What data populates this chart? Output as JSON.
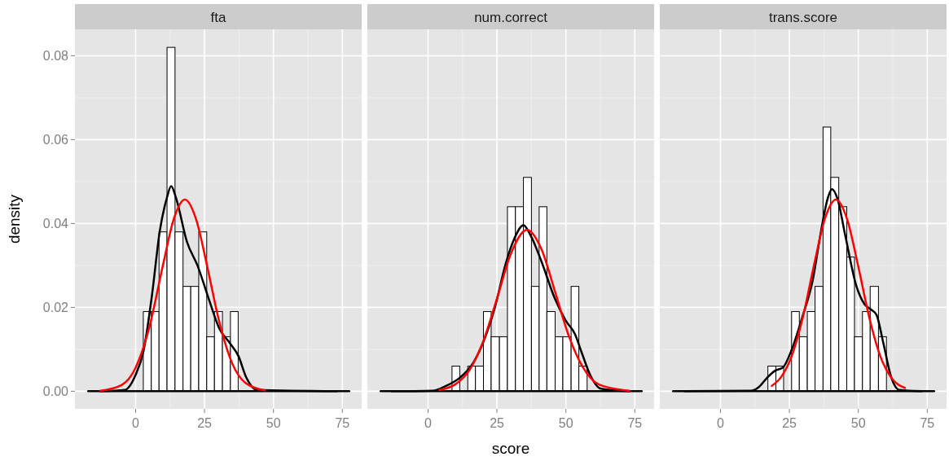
{
  "chart_data": [
    {
      "type": "histogram",
      "title": "fta",
      "ylabel": "density",
      "xlim": [
        -22,
        82
      ],
      "ylim": [
        -0.0042,
        0.0863
      ],
      "xticks": [
        0,
        25,
        50,
        75
      ],
      "yticks": [
        {
          "value": 0,
          "label": "0.00"
        },
        {
          "value": 0.02,
          "label": "0.02"
        },
        {
          "value": 0.04,
          "label": "0.04"
        },
        {
          "value": 0.06,
          "label": "0.06"
        },
        {
          "value": 0.08,
          "label": "0.08"
        }
      ],
      "grid": true,
      "series": [
        {
          "color": "#ffffff",
          "bins": [
            2.8,
            5.7,
            8.5,
            11.4,
            14.3,
            17.2,
            20.0,
            22.9,
            25.8,
            28.6,
            31.5,
            34.4,
            37.2
          ],
          "values": [
            0.019,
            0.019,
            0.038,
            0.082,
            0.038,
            0.025,
            0.025,
            0.038,
            0.013,
            0.019,
            0.013,
            0.019
          ]
        },
        {
          "type": "line",
          "color": "#000000",
          "x": [
            -17.2,
            77.5
          ],
          "values": [
            0,
            0
          ]
        },
        {
          "type": "line",
          "color": "#000000",
          "x": [
            -12.7,
            -3.9,
            0,
            2.9,
            5.9,
            8.8,
            11.3,
            12.9,
            14.7,
            18.6,
            22.5,
            26.5,
            30.4,
            34.3,
            37.3,
            40.2,
            44.1,
            73
          ],
          "values": [
            0,
            0.0003,
            0.0039,
            0.0097,
            0.0227,
            0.0383,
            0.046,
            0.0489,
            0.046,
            0.0357,
            0.0299,
            0.0221,
            0.0149,
            0.0114,
            0.0084,
            0.0032,
            0.0003,
            0
          ]
        },
        {
          "type": "line",
          "color": "#ff0000",
          "x": [
            -12.7,
            -5,
            0,
            5,
            10,
            14,
            17.9,
            22,
            26,
            30,
            35,
            40,
            46.9
          ],
          "values": [
            0.0001,
            0.0015,
            0.0056,
            0.0153,
            0.0303,
            0.0414,
            0.0457,
            0.0409,
            0.0297,
            0.0175,
            0.0067,
            0.0019,
            0.0002
          ]
        }
      ]
    },
    {
      "type": "histogram",
      "title": "num.correct",
      "xlabel": "score",
      "xlim": [
        -22,
        82
      ],
      "ylim": [
        -0.0042,
        0.0863
      ],
      "xticks": [
        0,
        25,
        50,
        75
      ],
      "yticks": [
        {
          "value": 0,
          "label": null
        },
        {
          "value": 0.02,
          "label": null
        },
        {
          "value": 0.04,
          "label": null
        },
        {
          "value": 0.06,
          "label": null
        },
        {
          "value": 0.08,
          "label": null
        }
      ],
      "grid": true,
      "tick_labels": "x",
      "series": [
        {
          "color": "#ffffff",
          "bins": [
            8.7,
            11.5,
            14.4,
            17.2,
            20.1,
            22.9,
            25.9,
            28.8,
            31.7,
            34.6,
            37.5,
            40.3,
            43.1,
            46.1,
            48.9,
            51.9,
            54.7,
            57.7
          ],
          "values": [
            0.006,
            0,
            0.006,
            0.006,
            0.019,
            0.013,
            0.013,
            0.044,
            0.044,
            0.051,
            0.025,
            0.044,
            0.019,
            0.013,
            0.013,
            0.025,
            0.006
          ]
        },
        {
          "type": "line",
          "color": "#000000",
          "x": [
            -17.2,
            77.5
          ],
          "values": [
            0,
            0
          ]
        },
        {
          "type": "line",
          "color": "#000000",
          "x": [
            -13.1,
            1.7,
            6.6,
            11.5,
            16.4,
            20.4,
            24.3,
            28.2,
            31.7,
            34.6,
            37.1,
            41,
            46,
            49.9,
            53.3,
            55.8,
            58.8,
            62.7,
            73
          ],
          "values": [
            0,
            0.0001,
            0.0013,
            0.0032,
            0.0068,
            0.0123,
            0.0201,
            0.0305,
            0.037,
            0.0396,
            0.0373,
            0.0312,
            0.0221,
            0.0169,
            0.0136,
            0.0091,
            0.0039,
            0.0006,
            0
          ]
        },
        {
          "type": "line",
          "color": "#ff0000",
          "x": [
            4.1,
            10,
            15,
            20,
            25,
            30,
            35.9,
            41,
            46,
            51,
            56,
            62,
            73
          ],
          "values": [
            0.0003,
            0.0017,
            0.005,
            0.0119,
            0.0221,
            0.0327,
            0.0385,
            0.0341,
            0.0239,
            0.0133,
            0.0059,
            0.0016,
            0.0001
          ]
        }
      ]
    },
    {
      "type": "histogram",
      "title": "trans.score",
      "xlim": [
        -22,
        82
      ],
      "ylim": [
        -0.0042,
        0.0863
      ],
      "xticks": [
        0,
        25,
        50,
        75
      ],
      "yticks": [
        {
          "value": 0,
          "label": null
        },
        {
          "value": 0.02,
          "label": null
        },
        {
          "value": 0.04,
          "label": null
        },
        {
          "value": 0.06,
          "label": null
        },
        {
          "value": 0.08,
          "label": null
        }
      ],
      "grid": true,
      "tick_labels": "x",
      "series": [
        {
          "color": "#ffffff",
          "bins": [
            17.2,
            20.1,
            22.9,
            25.8,
            28.6,
            31.5,
            34.3,
            37.2,
            40.0,
            42.9,
            45.8,
            48.6,
            51.5,
            54.3,
            57.3,
            60.2
          ],
          "values": [
            0.006,
            0.006,
            0,
            0.019,
            0.013,
            0.019,
            0.025,
            0.063,
            0.051,
            0.044,
            0.032,
            0.013,
            0.019,
            0.025,
            0.013
          ]
        },
        {
          "type": "line",
          "color": "#000000",
          "x": [
            -17.2,
            77.5
          ],
          "values": [
            0,
            0
          ]
        },
        {
          "type": "line",
          "color": "#000000",
          "x": [
            -13,
            11,
            13.9,
            16.9,
            19.8,
            22.7,
            25.7,
            29.6,
            33.5,
            36.5,
            38.9,
            40.4,
            42.4,
            45.3,
            49.2,
            52.2,
            54.6,
            56.6,
            59,
            62,
            64.9,
            73
          ],
          "values": [
            0,
            0.0001,
            0.001,
            0.0032,
            0.0049,
            0.0057,
            0.0097,
            0.0175,
            0.0266,
            0.0383,
            0.046,
            0.0482,
            0.046,
            0.037,
            0.0253,
            0.0208,
            0.0195,
            0.0182,
            0.0117,
            0.0032,
            0.0003,
            0
          ]
        },
        {
          "type": "line",
          "color": "#ff0000",
          "x": [
            18.6,
            22,
            26,
            30,
            34,
            38,
            41.9,
            46,
            50,
            54,
            58,
            62,
            66.9
          ],
          "values": [
            0.0013,
            0.0034,
            0.0087,
            0.018,
            0.0303,
            0.0414,
            0.0457,
            0.0409,
            0.0297,
            0.0175,
            0.0083,
            0.0032,
            0.0008
          ]
        }
      ]
    }
  ]
}
